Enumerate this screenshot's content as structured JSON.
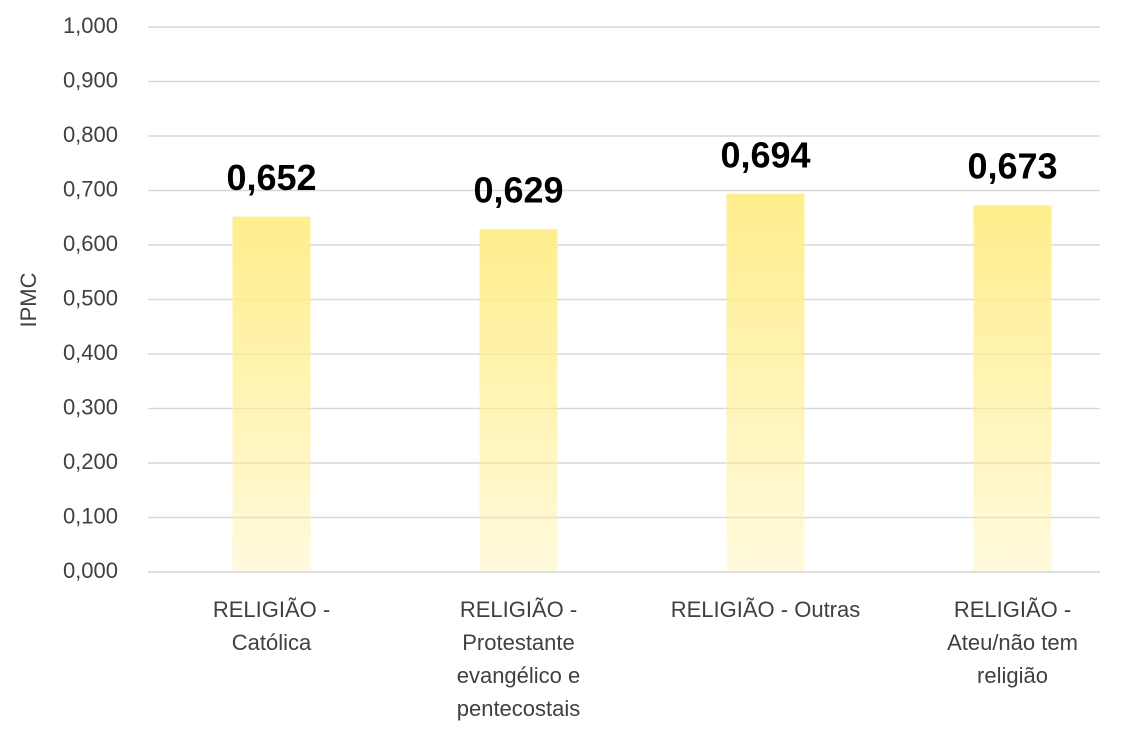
{
  "chart_data": {
    "type": "bar",
    "y_label": "IPMC",
    "categories": [
      "RELIGIÃO - Católica",
      "RELIGIÃO - Protestante evangélico e pentecostais",
      "RELIGIÃO - Outras",
      "RELIGIÃO - Ateu/não tem religião"
    ],
    "values": [
      0.652,
      0.629,
      0.694,
      0.673
    ],
    "value_labels": [
      "0,652",
      "0,629",
      "0,694",
      "0,673"
    ],
    "color": "#ffee8c",
    "ylim": [
      0,
      1
    ],
    "yticks": [
      {
        "value": 0,
        "label": "0,000"
      },
      {
        "value": 0.1,
        "label": "0,100"
      },
      {
        "value": 0.2,
        "label": "0,200"
      },
      {
        "value": 0.3,
        "label": "0,300"
      },
      {
        "value": 0.4,
        "label": "0,400"
      },
      {
        "value": 0.5,
        "label": "0,500"
      },
      {
        "value": 0.6,
        "label": "0,600"
      },
      {
        "value": 0.7,
        "label": "0,700"
      },
      {
        "value": 0.8,
        "label": "0,800"
      },
      {
        "value": 0.9,
        "label": "0,900"
      },
      {
        "value": 1,
        "label": "1,000"
      }
    ],
    "grid": true
  }
}
